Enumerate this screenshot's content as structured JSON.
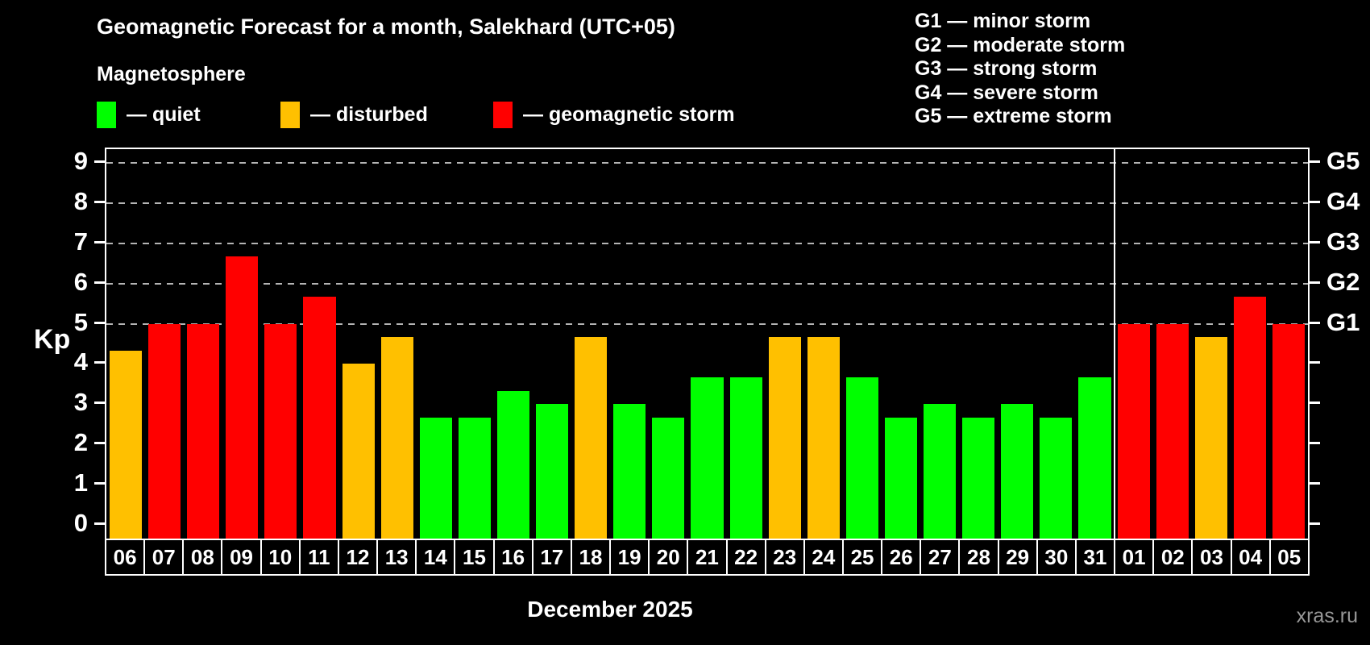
{
  "header": {
    "title": "Geomagnetic Forecast for a month, Salekhard (UTC+05)",
    "subtitle": "Magnetosphere"
  },
  "legend": {
    "items": [
      {
        "name": "quiet",
        "label": "— quiet",
        "color": "#00ff00"
      },
      {
        "name": "disturbed",
        "label": "— disturbed",
        "color": "#ffc000"
      },
      {
        "name": "storm",
        "label": "— geomagnetic storm",
        "color": "#ff0000"
      }
    ]
  },
  "storm_scale": {
    "items": [
      "G1 — minor storm",
      "G2 — moderate storm",
      "G3 — strong storm",
      "G4 — severe storm",
      "G5 — extreme storm"
    ]
  },
  "footer": {
    "month_label": "December 2025",
    "watermark": "xras.ru"
  },
  "chart_data": {
    "type": "bar",
    "title": "Geomagnetic Forecast for a month, Salekhard (UTC+05)",
    "xlabel": "December 2025",
    "ylabel": "Kp",
    "ylim": [
      -0.35,
      9.35
    ],
    "yticks": [
      0,
      1,
      2,
      3,
      4,
      5,
      6,
      7,
      8,
      9
    ],
    "grid_levels": [
      5,
      6,
      7,
      8,
      9
    ],
    "grid_on": true,
    "legend_position": "top",
    "right_axis": [
      {
        "value": 5,
        "label": "G1"
      },
      {
        "value": 6,
        "label": "G2"
      },
      {
        "value": 7,
        "label": "G3"
      },
      {
        "value": 8,
        "label": "G4"
      },
      {
        "value": 9,
        "label": "G5"
      }
    ],
    "colors": {
      "quiet": "#00ff00",
      "disturbed": "#ffc000",
      "storm": "#ff0000"
    },
    "month_separator_after": "31",
    "bars": [
      {
        "day": "06",
        "kp": 4.33,
        "status": "disturbed"
      },
      {
        "day": "07",
        "kp": 5.0,
        "status": "storm"
      },
      {
        "day": "08",
        "kp": 5.0,
        "status": "storm"
      },
      {
        "day": "09",
        "kp": 6.67,
        "status": "storm"
      },
      {
        "day": "10",
        "kp": 5.0,
        "status": "storm"
      },
      {
        "day": "11",
        "kp": 5.67,
        "status": "storm"
      },
      {
        "day": "12",
        "kp": 4.0,
        "status": "disturbed"
      },
      {
        "day": "13",
        "kp": 4.67,
        "status": "disturbed"
      },
      {
        "day": "14",
        "kp": 2.67,
        "status": "quiet"
      },
      {
        "day": "15",
        "kp": 2.67,
        "status": "quiet"
      },
      {
        "day": "16",
        "kp": 3.33,
        "status": "quiet"
      },
      {
        "day": "17",
        "kp": 3.0,
        "status": "quiet"
      },
      {
        "day": "18",
        "kp": 4.67,
        "status": "disturbed"
      },
      {
        "day": "19",
        "kp": 3.0,
        "status": "quiet"
      },
      {
        "day": "20",
        "kp": 2.67,
        "status": "quiet"
      },
      {
        "day": "21",
        "kp": 3.67,
        "status": "quiet"
      },
      {
        "day": "22",
        "kp": 3.67,
        "status": "quiet"
      },
      {
        "day": "23",
        "kp": 4.67,
        "status": "disturbed"
      },
      {
        "day": "24",
        "kp": 4.67,
        "status": "disturbed"
      },
      {
        "day": "25",
        "kp": 3.67,
        "status": "quiet"
      },
      {
        "day": "26",
        "kp": 2.67,
        "status": "quiet"
      },
      {
        "day": "27",
        "kp": 3.0,
        "status": "quiet"
      },
      {
        "day": "28",
        "kp": 2.67,
        "status": "quiet"
      },
      {
        "day": "29",
        "kp": 3.0,
        "status": "quiet"
      },
      {
        "day": "30",
        "kp": 2.67,
        "status": "quiet"
      },
      {
        "day": "31",
        "kp": 3.67,
        "status": "quiet"
      },
      {
        "day": "01",
        "kp": 5.0,
        "status": "storm"
      },
      {
        "day": "02",
        "kp": 5.0,
        "status": "storm"
      },
      {
        "day": "03",
        "kp": 4.67,
        "status": "disturbed"
      },
      {
        "day": "04",
        "kp": 5.67,
        "status": "storm"
      },
      {
        "day": "05",
        "kp": 5.0,
        "status": "storm"
      }
    ]
  }
}
